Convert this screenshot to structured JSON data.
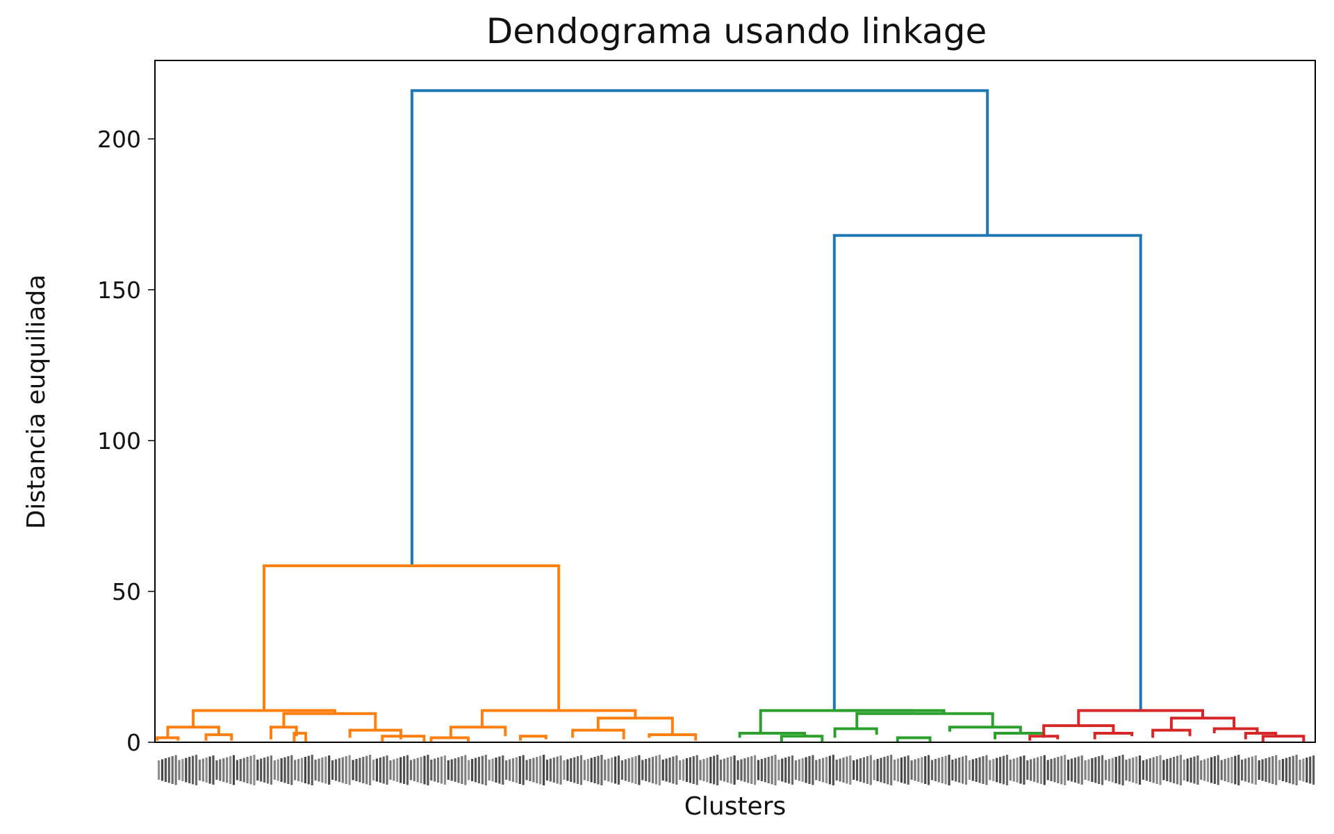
{
  "chart_data": {
    "type": "dendrogram",
    "title": "Dendograma usando linkage",
    "xlabel": "Clusters",
    "ylabel": "Distancia euquiliada",
    "ylim": [
      0,
      226
    ],
    "yticks": [
      0,
      50,
      100,
      150,
      200
    ],
    "xlim": [
      0,
      1000
    ],
    "grid": false,
    "colors": {
      "root": "#1f77b4",
      "cluster_1": "#ff7f0e",
      "cluster_2": "#2ca02c",
      "cluster_3": "#d62728"
    },
    "links": [
      {
        "x": [
          221.5,
          221.5,
          717.5,
          717.5
        ],
        "y": [
          58.5,
          216.0,
          216.0,
          168.0
        ],
        "color": "root"
      },
      {
        "x": [
          585.5,
          585.5,
          849.5,
          849.5
        ],
        "y": [
          10.5,
          168.0,
          168.0,
          10.5
        ],
        "color": "root"
      },
      {
        "x": [
          94.0,
          94.0,
          348.0,
          348.0
        ],
        "y": [
          10.5,
          58.5,
          58.5,
          10.5
        ],
        "color": "cluster_1"
      },
      {
        "x": [
          33.0,
          33.0,
          155.0,
          155.0
        ],
        "y": [
          5.0,
          10.5,
          10.5,
          9.5
        ],
        "color": "cluster_1"
      },
      {
        "x": [
          113.0,
          113.0,
          152.0,
          152.0
        ],
        "y": [
          10.5,
          10.5,
          10.5,
          10.5
        ],
        "color": "cluster_1"
      },
      {
        "x": [
          11.0,
          11.0,
          55.0,
          55.0
        ],
        "y": [
          1.5,
          5.0,
          5.0,
          2.5
        ],
        "color": "cluster_1"
      },
      {
        "x": [
          2.0,
          2.0,
          20.0,
          20.0
        ],
        "y": [
          0.5,
          1.5,
          1.5,
          0.5
        ],
        "color": "cluster_1"
      },
      {
        "x": [
          44.0,
          44.0,
          66.0,
          66.0
        ],
        "y": [
          0.5,
          2.5,
          2.5,
          0.5
        ],
        "color": "cluster_1"
      },
      {
        "x": [
          111.0,
          111.0,
          190.0,
          190.0
        ],
        "y": [
          5.0,
          9.5,
          9.5,
          4.0
        ],
        "color": "cluster_1"
      },
      {
        "x": [
          100.0,
          100.0,
          122.0,
          122.0
        ],
        "y": [
          1.0,
          5.0,
          5.0,
          2.0
        ],
        "color": "cluster_1"
      },
      {
        "x": [
          168.0,
          168.0,
          212.0,
          212.0
        ],
        "y": [
          1.5,
          4.0,
          4.0,
          1.0
        ],
        "color": "cluster_1"
      },
      {
        "x": [
          120.0,
          120.0,
          130.0,
          130.0
        ],
        "y": [
          0.0,
          3.0,
          3.0,
          0.0
        ],
        "color": "cluster_1"
      },
      {
        "x": [
          196.0,
          196.0,
          232.0,
          232.0
        ],
        "y": [
          0.0,
          2.0,
          2.0,
          0.0
        ],
        "color": "cluster_1"
      },
      {
        "x": [
          282.0,
          282.0,
          414.0,
          414.0
        ],
        "y": [
          5.0,
          10.5,
          10.5,
          8.0
        ],
        "color": "cluster_1"
      },
      {
        "x": [
          255.0,
          255.0,
          302.0,
          302.0
        ],
        "y": [
          1.5,
          5.0,
          5.0,
          2.0
        ],
        "color": "cluster_1"
      },
      {
        "x": [
          382.0,
          382.0,
          446.0,
          446.0
        ],
        "y": [
          4.0,
          8.0,
          8.0,
          2.5
        ],
        "color": "cluster_1"
      },
      {
        "x": [
          360.0,
          360.0,
          404.0,
          404.0
        ],
        "y": [
          1.5,
          4.0,
          4.0,
          1.0
        ],
        "color": "cluster_1"
      },
      {
        "x": [
          426.0,
          426.0,
          466.0,
          466.0
        ],
        "y": [
          1.5,
          2.5,
          2.5,
          0.5
        ],
        "color": "cluster_1"
      },
      {
        "x": [
          315.0,
          315.0,
          337.0,
          337.0
        ],
        "y": [
          0.5,
          2.0,
          2.0,
          1.0
        ],
        "color": "cluster_1"
      },
      {
        "x": [
          238.0,
          238.0,
          270.0,
          270.0
        ],
        "y": [
          0.0,
          1.5,
          1.5,
          0.0
        ],
        "color": "cluster_1"
      },
      {
        "x": [
          522.0,
          522.0,
          680.0,
          680.0
        ],
        "y": [
          3.0,
          10.5,
          10.5,
          9.5
        ],
        "color": "cluster_2"
      },
      {
        "x": [
          589.0,
          589.0,
          654.0,
          654.0
        ],
        "y": [
          10.5,
          10.5,
          10.5,
          10.5
        ],
        "color": "cluster_2"
      },
      {
        "x": [
          504.0,
          504.0,
          560.0,
          560.0
        ],
        "y": [
          1.5,
          3.0,
          3.0,
          2.0
        ],
        "color": "cluster_2"
      },
      {
        "x": [
          605.0,
          605.0,
          722.0,
          722.0
        ],
        "y": [
          4.5,
          9.5,
          9.5,
          5.0
        ],
        "color": "cluster_2"
      },
      {
        "x": [
          586.0,
          586.0,
          622.0,
          622.0
        ],
        "y": [
          1.5,
          4.5,
          4.5,
          2.5
        ],
        "color": "cluster_2"
      },
      {
        "x": [
          685.0,
          685.0,
          746.0,
          746.0
        ],
        "y": [
          3.5,
          5.0,
          5.0,
          3.0
        ],
        "color": "cluster_2"
      },
      {
        "x": [
          724.0,
          724.0,
          766.0,
          766.0
        ],
        "y": [
          1.0,
          3.0,
          3.0,
          1.5
        ],
        "color": "cluster_2"
      },
      {
        "x": [
          540.0,
          540.0,
          575.0,
          575.0
        ],
        "y": [
          0.0,
          2.0,
          2.0,
          0.0
        ],
        "color": "cluster_2"
      },
      {
        "x": [
          640.0,
          640.0,
          668.0,
          668.0
        ],
        "y": [
          0.0,
          1.5,
          1.5,
          0.0
        ],
        "color": "cluster_2"
      },
      {
        "x": [
          796.0,
          796.0,
          903.0,
          903.0
        ],
        "y": [
          5.5,
          10.5,
          10.5,
          8.0
        ],
        "color": "cluster_3"
      },
      {
        "x": [
          766.0,
          766.0,
          826.0,
          826.0
        ],
        "y": [
          2.0,
          5.5,
          5.5,
          3.0
        ],
        "color": "cluster_3"
      },
      {
        "x": [
          754.0,
          754.0,
          778.0,
          778.0
        ],
        "y": [
          0.5,
          2.0,
          2.0,
          1.0
        ],
        "color": "cluster_3"
      },
      {
        "x": [
          810.0,
          810.0,
          842.0,
          842.0
        ],
        "y": [
          1.0,
          3.0,
          3.0,
          2.0
        ],
        "color": "cluster_3"
      },
      {
        "x": [
          876.0,
          876.0,
          930.0,
          930.0
        ],
        "y": [
          4.0,
          8.0,
          8.0,
          4.5
        ],
        "color": "cluster_3"
      },
      {
        "x": [
          860.0,
          860.0,
          892.0,
          892.0
        ],
        "y": [
          1.5,
          4.0,
          4.0,
          2.0
        ],
        "color": "cluster_3"
      },
      {
        "x": [
          913.0,
          913.0,
          950.0,
          950.0
        ],
        "y": [
          3.0,
          4.5,
          4.5,
          3.0
        ],
        "color": "cluster_3"
      },
      {
        "x": [
          940.0,
          940.0,
          966.0,
          966.0
        ],
        "y": [
          1.0,
          3.0,
          3.0,
          2.0
        ],
        "color": "cluster_3"
      },
      {
        "x": [
          955.0,
          955.0,
          990.0,
          990.0
        ],
        "y": [
          0.0,
          2.0,
          2.0,
          0.0
        ],
        "color": "cluster_3"
      }
    ]
  }
}
